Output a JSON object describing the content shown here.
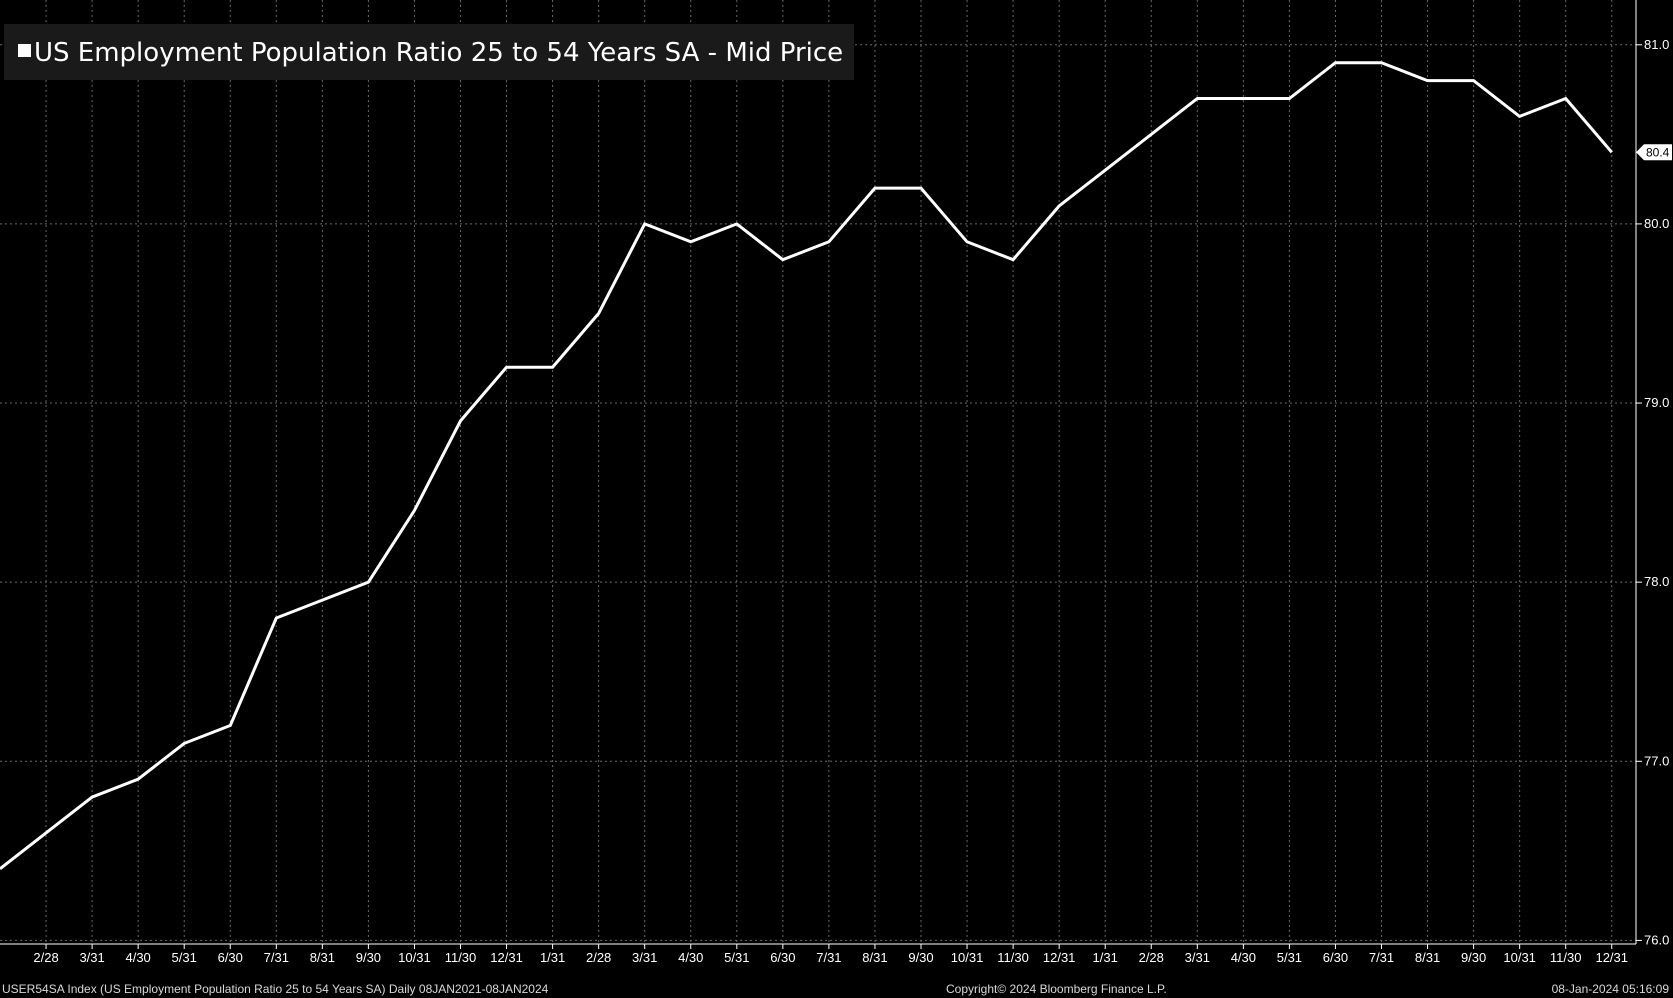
{
  "colors": {
    "background": "#000000",
    "line": "#ffffff",
    "grid": "#6a6a6a",
    "axis": "#ffffff",
    "legend_bg": "#1a1a1a",
    "footer_text": "#d8d8d8"
  },
  "legend": {
    "marker_icon": "white-square-marker",
    "label": "US Employment Population Ratio 25 to 54 Years SA - Mid Price",
    "placement": "top-left"
  },
  "footer": {
    "left": "USER54SA Index (US Employment Population Ratio 25 to 54 Years SA)  Daily 08JAN2021-08JAN2024",
    "center": "Copyright© 2024 Bloomberg Finance L.P.",
    "right": "08-Jan-2024 05:16:09"
  },
  "chart_data": {
    "type": "line",
    "title": "",
    "xlabel": "",
    "ylabel": "",
    "x_tick_labels": [
      "2/28",
      "3/31",
      "4/30",
      "5/31",
      "6/30",
      "7/31",
      "8/31",
      "9/30",
      "10/31",
      "11/30",
      "12/31",
      "1/31",
      "2/28",
      "3/31",
      "4/30",
      "5/31",
      "6/30",
      "7/31",
      "8/31",
      "9/30",
      "10/31",
      "11/30",
      "12/31",
      "1/31",
      "2/28",
      "3/31",
      "4/30",
      "5/31",
      "6/30",
      "7/31",
      "8/31",
      "9/30",
      "10/31",
      "11/30",
      "12/31"
    ],
    "y_ticks": [
      76.0,
      77.0,
      78.0,
      79.0,
      80.0,
      81.0
    ],
    "y_tick_labels": [
      "76.0",
      "77.0",
      "78.0",
      "79.0",
      "80.0",
      "81.0"
    ],
    "ylim": [
      75.98,
      81.25
    ],
    "y_axis_position": "right",
    "grid": true,
    "last_value_label": "80.4",
    "series": [
      {
        "name": "US Employment Population Ratio 25 to 54 Years SA - Mid Price",
        "x": [
          "2021-01-31",
          "2021-02-28",
          "2021-03-31",
          "2021-04-30",
          "2021-05-31",
          "2021-06-30",
          "2021-07-31",
          "2021-08-31",
          "2021-09-30",
          "2021-10-31",
          "2021-11-30",
          "2021-12-31",
          "2022-01-31",
          "2022-02-28",
          "2022-03-31",
          "2022-04-30",
          "2022-05-31",
          "2022-06-30",
          "2022-07-31",
          "2022-08-31",
          "2022-09-30",
          "2022-10-31",
          "2022-11-30",
          "2022-12-31",
          "2023-01-31",
          "2023-02-28",
          "2023-03-31",
          "2023-04-30",
          "2023-05-31",
          "2023-06-30",
          "2023-07-31",
          "2023-08-31",
          "2023-09-30",
          "2023-10-31",
          "2023-11-30",
          "2023-12-31"
        ],
        "values": [
          76.4,
          76.6,
          76.8,
          76.9,
          77.1,
          77.2,
          77.8,
          77.9,
          78.0,
          78.4,
          78.9,
          79.2,
          79.2,
          79.5,
          80.0,
          79.9,
          80.0,
          79.8,
          79.9,
          80.2,
          80.2,
          79.9,
          79.8,
          80.1,
          80.3,
          80.5,
          80.7,
          80.7,
          80.7,
          80.9,
          80.9,
          80.8,
          80.8,
          80.6,
          80.7,
          80.4
        ]
      }
    ]
  }
}
